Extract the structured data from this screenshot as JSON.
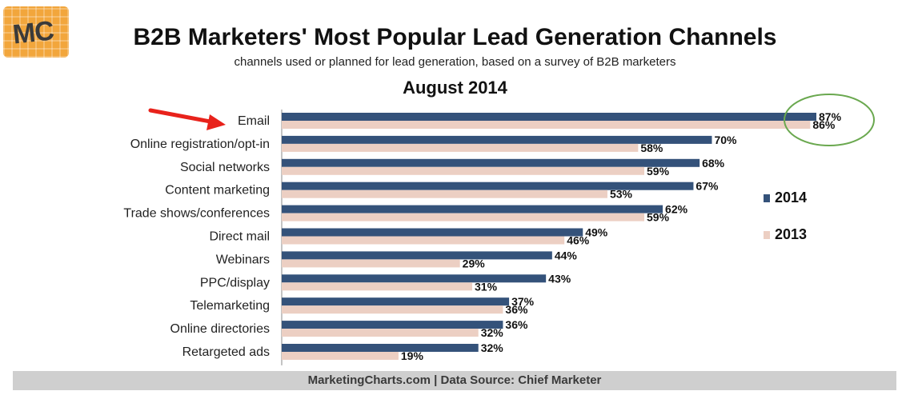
{
  "logo": {
    "text": "MC"
  },
  "chart_data": {
    "type": "bar",
    "orientation": "horizontal",
    "title": "B2B Marketers' Most Popular Lead Generation Channels",
    "subtitle": "channels used or planned for lead generation, based on a survey of B2B marketers",
    "period": "August 2014",
    "categories": [
      "Email",
      "Online registration/opt-in",
      "Social networks",
      "Content marketing",
      "Trade shows/conferences",
      "Direct mail",
      "Webinars",
      "PPC/display",
      "Telemarketing",
      "Online directories",
      "Retargeted ads"
    ],
    "series": [
      {
        "name": "2014",
        "color": "#34527a",
        "values": [
          87,
          70,
          68,
          67,
          62,
          49,
          44,
          43,
          37,
          36,
          32
        ]
      },
      {
        "name": "2013",
        "color": "#eccfc3",
        "values": [
          86,
          58,
          59,
          53,
          59,
          46,
          29,
          31,
          36,
          32,
          19
        ]
      }
    ],
    "value_suffix": "%",
    "xlim": [
      0,
      87
    ],
    "legend_position": "right",
    "highlighted_category": "Email"
  },
  "footer": {
    "source": "MarketingCharts.com | Data Source: Chief Marketer"
  },
  "colors": {
    "arrow": "#e8221b",
    "circle": "#6aa84f"
  }
}
